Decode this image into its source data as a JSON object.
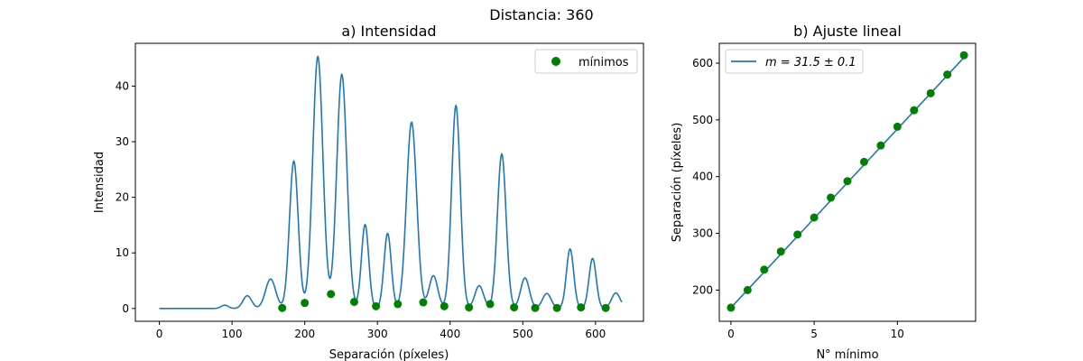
{
  "suptitle": "Distancia: 360",
  "colors": {
    "line": "#1f77b4",
    "points": "#008000",
    "axes": "#000000"
  },
  "chart_data": [
    {
      "type": "line",
      "title": "a) Intensidad",
      "xlabel": "Separación (píxeles)",
      "ylabel": "Intensidad",
      "xlim": [
        -33,
        666
      ],
      "ylim": [
        -2.3,
        47.7
      ],
      "xticks": [
        0,
        100,
        200,
        300,
        400,
        500,
        600
      ],
      "yticks": [
        0,
        10,
        20,
        30,
        40
      ],
      "grid": false,
      "legend": {
        "position": "top-right",
        "entries": [
          "mínimos"
        ]
      },
      "peaks": [
        {
          "x": 90,
          "y": 0.6,
          "w": 5
        },
        {
          "x": 121,
          "y": 2.3,
          "w": 6
        },
        {
          "x": 153,
          "y": 5.3,
          "w": 7
        },
        {
          "x": 185,
          "y": 26.5,
          "w": 6
        },
        {
          "x": 218,
          "y": 45.3,
          "w": 7
        },
        {
          "x": 251,
          "y": 42.1,
          "w": 7
        },
        {
          "x": 283,
          "y": 15.1,
          "w": 5
        },
        {
          "x": 314,
          "y": 13.5,
          "w": 5
        },
        {
          "x": 347,
          "y": 33.5,
          "w": 7
        },
        {
          "x": 377,
          "y": 5.9,
          "w": 6
        },
        {
          "x": 408,
          "y": 36.5,
          "w": 6
        },
        {
          "x": 440,
          "y": 4.1,
          "w": 6
        },
        {
          "x": 471,
          "y": 27.8,
          "w": 6
        },
        {
          "x": 503,
          "y": 5.5,
          "w": 6
        },
        {
          "x": 533,
          "y": 2.7,
          "w": 6
        },
        {
          "x": 565,
          "y": 10.7,
          "w": 5
        },
        {
          "x": 596,
          "y": 9.0,
          "w": 5
        },
        {
          "x": 628,
          "y": 2.8,
          "w": 6
        }
      ],
      "line_x_range": [
        0,
        636
      ],
      "minima": {
        "name": "mínimos",
        "x": [
          169,
          200,
          236,
          268,
          298,
          328,
          363,
          392,
          426,
          455,
          488,
          517,
          547,
          580,
          614
        ],
        "y": [
          0.1,
          1.0,
          2.6,
          1.2,
          0.4,
          0.8,
          1.1,
          0.4,
          0.2,
          0.8,
          0.2,
          0.1,
          0.1,
          0.2,
          0.1
        ]
      }
    },
    {
      "type": "scatter",
      "title": "b) Ajuste lineal",
      "xlabel": "N° mínimo",
      "ylabel": "Separación (píxeles)",
      "xlim": [
        -0.7,
        14.7
      ],
      "ylim": [
        145,
        635
      ],
      "xticks": [
        0,
        5,
        10
      ],
      "yticks": [
        200,
        300,
        400,
        500,
        600
      ],
      "grid": false,
      "legend": {
        "position": "top-left",
        "entries": [
          "m = 31.5 ± 0.1"
        ]
      },
      "fit": {
        "slope": 31.5,
        "intercept": 169,
        "label": "m = 31.5 ± 0.1",
        "x_range": [
          0,
          14
        ]
      },
      "points": {
        "x": [
          0,
          1,
          2,
          3,
          4,
          5,
          6,
          7,
          8,
          9,
          10,
          11,
          12,
          13,
          14
        ],
        "y": [
          169,
          200,
          236,
          268,
          298,
          328,
          363,
          392,
          426,
          455,
          488,
          517,
          547,
          580,
          614
        ]
      }
    }
  ]
}
